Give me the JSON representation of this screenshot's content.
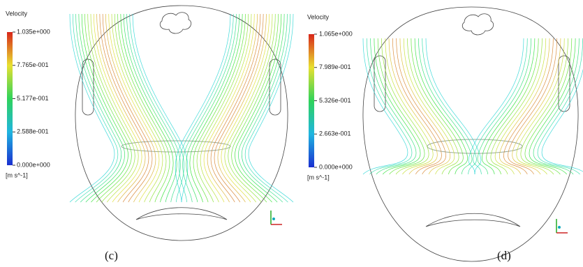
{
  "panels": [
    {
      "legend_title": "Velocity",
      "legend_ticks": [
        "1.035e+000",
        "7.765e-001",
        "5.177e-001",
        "2.588e-001",
        "0.000e+000"
      ],
      "unit": "[m s^-1]",
      "label": "(c)"
    },
    {
      "legend_title": "Velocity",
      "legend_ticks": [
        "1.065e+000",
        "7.989e-001",
        "5.326e-001",
        "2.663e-001",
        "0.000e+000"
      ],
      "unit": "[m s^-1]",
      "label": "(d)"
    }
  ]
}
